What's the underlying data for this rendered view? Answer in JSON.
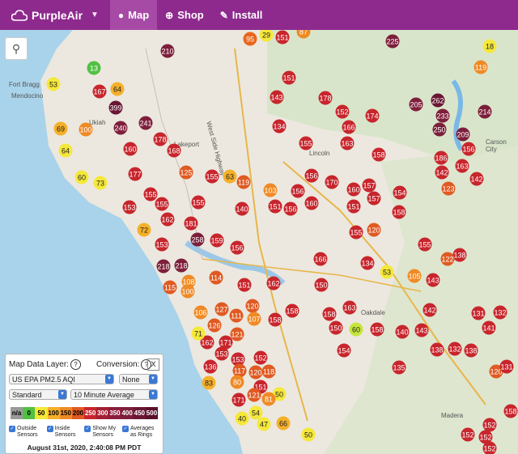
{
  "nav": {
    "brand": "PurpleAir",
    "items": [
      {
        "label": "Map",
        "icon": "globe-icon",
        "active": true
      },
      {
        "label": "Shop",
        "icon": "plus-circle-icon",
        "active": false
      },
      {
        "label": "Install",
        "icon": "wrench-icon",
        "active": false
      }
    ]
  },
  "map_labels": [
    "Fort Bragg",
    "Mendocino",
    "Ukiah",
    "Lakeport",
    "Lincoln",
    "Oakdale",
    "Madera",
    "Carson City",
    "West Side Highway"
  ],
  "sensors": [
    [
      207,
      63,
      210,
      "#7e1f3b"
    ],
    [
      309,
      48,
      95,
      "#e8661c"
    ],
    [
      329,
      43,
      29,
      "#f5e83a"
    ],
    [
      349,
      46,
      151,
      "#c8252c"
    ],
    [
      375,
      39,
      87,
      "#f08a25"
    ],
    [
      485,
      51,
      225,
      "#7b1f3a"
    ],
    [
      605,
      57,
      18,
      "#f5e83a"
    ],
    [
      594,
      83,
      119,
      "#f08a25"
    ],
    [
      116,
      84,
      13,
      "#52c043"
    ],
    [
      66,
      104,
      53,
      "#f5e83a"
    ],
    [
      123,
      113,
      167,
      "#c8252c"
    ],
    [
      145,
      110,
      64,
      "#f5b02a"
    ],
    [
      143,
      133,
      399,
      "#6a1634"
    ],
    [
      357,
      96,
      151,
      "#c8252c"
    ],
    [
      402,
      121,
      178,
      "#c8252c"
    ],
    [
      423,
      138,
      152,
      "#c8252c"
    ],
    [
      460,
      143,
      174,
      "#c8252c"
    ],
    [
      514,
      129,
      205,
      "#7e1f3b"
    ],
    [
      541,
      124,
      262,
      "#6a1634"
    ],
    [
      599,
      138,
      214,
      "#7b1f3a"
    ],
    [
      547,
      143,
      233,
      "#7e1f3b"
    ],
    [
      342,
      120,
      143,
      "#c8252c"
    ],
    [
      345,
      156,
      134,
      "#c8252c"
    ],
    [
      75,
      159,
      69,
      "#f5b02a"
    ],
    [
      106,
      160,
      100,
      "#f08a25"
    ],
    [
      149,
      158,
      240,
      "#7e1f3b"
    ],
    [
      180,
      152,
      241,
      "#7e1f3b"
    ],
    [
      431,
      157,
      166,
      "#c8252c"
    ],
    [
      543,
      160,
      250,
      "#7b1f3a"
    ],
    [
      572,
      166,
      209,
      "#7b1f3a"
    ],
    [
      81,
      186,
      64,
      "#f5e83a"
    ],
    [
      161,
      184,
      160,
      "#c8252c"
    ],
    [
      198,
      172,
      178,
      "#c8252c"
    ],
    [
      215,
      186,
      168,
      "#c8252c"
    ],
    [
      378,
      177,
      155,
      "#c8252c"
    ],
    [
      429,
      177,
      163,
      "#c8252c"
    ],
    [
      468,
      191,
      158,
      "#c8252c"
    ],
    [
      579,
      184,
      156,
      "#c8252c"
    ],
    [
      545,
      195,
      186,
      "#c8252c"
    ],
    [
      571,
      205,
      163,
      "#c8252c"
    ],
    [
      167,
      215,
      177,
      "#c8252c"
    ],
    [
      230,
      213,
      125,
      "#e05a22"
    ],
    [
      101,
      219,
      60,
      "#f5e83a"
    ],
    [
      124,
      226,
      73,
      "#f5e83a"
    ],
    [
      262,
      218,
      155,
      "#c8252c"
    ],
    [
      284,
      218,
      63,
      "#f5b02a"
    ],
    [
      301,
      225,
      119,
      "#e05a22"
    ],
    [
      385,
      217,
      156,
      "#c8252c"
    ],
    [
      410,
      225,
      170,
      "#c8252c"
    ],
    [
      437,
      234,
      160,
      "#c8252c"
    ],
    [
      456,
      229,
      157,
      "#c8252c"
    ],
    [
      494,
      238,
      154,
      "#c8252c"
    ],
    [
      554,
      233,
      123,
      "#e05a22"
    ],
    [
      589,
      221,
      142,
      "#c8252c"
    ],
    [
      546,
      213,
      142,
      "#c8252c"
    ],
    [
      186,
      240,
      155,
      "#c8252c"
    ],
    [
      334,
      235,
      103,
      "#f08a25"
    ],
    [
      368,
      236,
      156,
      "#c8252c"
    ],
    [
      160,
      256,
      153,
      "#c8252c"
    ],
    [
      200,
      252,
      155,
      "#c8252c"
    ],
    [
      245,
      250,
      155,
      "#c8252c"
    ],
    [
      299,
      258,
      140,
      "#c8252c"
    ],
    [
      340,
      255,
      151,
      "#c8252c"
    ],
    [
      359,
      258,
      156,
      "#c8252c"
    ],
    [
      385,
      251,
      160,
      "#c8252c"
    ],
    [
      437,
      255,
      151,
      "#c8252c"
    ],
    [
      462,
      245,
      157,
      "#c8252c"
    ],
    [
      493,
      262,
      158,
      "#c8252c"
    ],
    [
      207,
      271,
      162,
      "#c8252c"
    ],
    [
      236,
      276,
      181,
      "#c8252c"
    ],
    [
      178,
      284,
      72,
      "#f5b02a"
    ],
    [
      440,
      287,
      155,
      "#c8252c"
    ],
    [
      462,
      284,
      120,
      "#e05a22"
    ],
    [
      525,
      302,
      155,
      "#c8252c"
    ],
    [
      244,
      296,
      258,
      "#7b1f3a"
    ],
    [
      268,
      297,
      159,
      "#c8252c"
    ],
    [
      293,
      306,
      156,
      "#c8252c"
    ],
    [
      200,
      302,
      153,
      "#c8252c"
    ],
    [
      396,
      320,
      166,
      "#c8252c"
    ],
    [
      454,
      325,
      134,
      "#c8252c"
    ],
    [
      478,
      336,
      53,
      "#f5e83a"
    ],
    [
      568,
      315,
      138,
      "#c8252c"
    ],
    [
      553,
      320,
      122,
      "#e05a22"
    ],
    [
      202,
      329,
      218,
      "#7e1f3b"
    ],
    [
      224,
      328,
      218,
      "#7e1f3b"
    ],
    [
      233,
      348,
      108,
      "#f08a25"
    ],
    [
      267,
      343,
      114,
      "#e05a22"
    ],
    [
      302,
      352,
      151,
      "#c8252c"
    ],
    [
      338,
      350,
      162,
      "#c8252c"
    ],
    [
      397,
      352,
      150,
      "#c8252c"
    ],
    [
      512,
      341,
      105,
      "#f08a25"
    ],
    [
      535,
      346,
      143,
      "#c8252c"
    ],
    [
      232,
      360,
      100,
      "#f08a25"
    ],
    [
      210,
      355,
      115,
      "#e05a22"
    ],
    [
      274,
      382,
      127,
      "#e05a22"
    ],
    [
      312,
      378,
      120,
      "#e05a22"
    ],
    [
      361,
      384,
      158,
      "#c8252c"
    ],
    [
      407,
      388,
      158,
      "#c8252c"
    ],
    [
      432,
      380,
      163,
      "#c8252c"
    ],
    [
      531,
      383,
      142,
      "#c8252c"
    ],
    [
      591,
      387,
      131,
      "#c8252c"
    ],
    [
      618,
      386,
      132,
      "#c8252c"
    ],
    [
      248,
      386,
      106,
      "#f08a25"
    ],
    [
      292,
      390,
      111,
      "#e05a22"
    ],
    [
      314,
      394,
      107,
      "#f08a25"
    ],
    [
      265,
      402,
      126,
      "#e05a22"
    ],
    [
      293,
      413,
      121,
      "#e05a22"
    ],
    [
      256,
      423,
      162,
      "#c8252c"
    ],
    [
      279,
      423,
      171,
      "#c8252c"
    ],
    [
      245,
      412,
      71,
      "#f5e83a"
    ],
    [
      340,
      395,
      158,
      "#c8252c"
    ],
    [
      415,
      405,
      150,
      "#c8252c"
    ],
    [
      440,
      407,
      60,
      "#c5e63a"
    ],
    [
      466,
      407,
      158,
      "#c8252c"
    ],
    [
      497,
      410,
      140,
      "#c8252c"
    ],
    [
      521,
      408,
      143,
      "#c8252c"
    ],
    [
      604,
      405,
      141,
      "#c8252c"
    ],
    [
      274,
      437,
      153,
      "#c8252c"
    ],
    [
      294,
      444,
      153,
      "#c8252c"
    ],
    [
      322,
      442,
      152,
      "#c8252c"
    ],
    [
      425,
      433,
      154,
      "#c8252c"
    ],
    [
      562,
      431,
      132,
      "#c8252c"
    ],
    [
      582,
      433,
      138,
      "#c8252c"
    ],
    [
      540,
      432,
      138,
      "#c8252c"
    ],
    [
      260,
      453,
      136,
      "#c8252c"
    ],
    [
      296,
      458,
      117,
      "#e05a22"
    ],
    [
      316,
      460,
      120,
      "#e05a22"
    ],
    [
      332,
      459,
      118,
      "#e05a22"
    ],
    [
      493,
      454,
      135,
      "#c8252c"
    ],
    [
      613,
      459,
      120,
      "#e05a22"
    ],
    [
      626,
      453,
      131,
      "#c8252c"
    ],
    [
      293,
      472,
      80,
      "#f08a25"
    ],
    [
      322,
      478,
      151,
      "#c8252c"
    ],
    [
      258,
      473,
      83,
      "#f5b02a"
    ],
    [
      345,
      487,
      50,
      "#f5e83a"
    ],
    [
      295,
      494,
      171,
      "#c8252c"
    ],
    [
      314,
      488,
      121,
      "#e05a22"
    ],
    [
      332,
      493,
      81,
      "#f08a25"
    ],
    [
      299,
      517,
      40,
      "#f5e83a"
    ],
    [
      316,
      510,
      54,
      "#f5e83a"
    ],
    [
      326,
      524,
      47,
      "#f5e83a"
    ],
    [
      350,
      523,
      66,
      "#f5b02a"
    ],
    [
      381,
      537,
      50,
      "#f5e83a"
    ],
    [
      578,
      537,
      152,
      "#c8252c"
    ],
    [
      600,
      540,
      152,
      "#c8252c"
    ],
    [
      605,
      525,
      152,
      "#c8252c"
    ],
    [
      631,
      508,
      158,
      "#c8252c"
    ],
    [
      605,
      554,
      152,
      "#c8252c"
    ]
  ],
  "panel": {
    "title": "Map Data Layer:",
    "conversion_label": "Conversion:",
    "close_label": "X",
    "layer_select": "US EPA PM2.5 AQI",
    "conversion_select": "None",
    "mode_select": "Standard",
    "average_select": "10 Minute Average",
    "scale_labels": [
      "n/a",
      "0",
      "50",
      "100",
      "150",
      "200",
      "250",
      "300",
      "350",
      "400",
      "450",
      "500"
    ],
    "scale_colors": [
      "#9a9a9a",
      "#52c043",
      "#f5e83a",
      "#f5b02a",
      "#f08a25",
      "#e05a22",
      "#c8252c",
      "#a31f33",
      "#8a1d3c",
      "#7b1f3a",
      "#6a1634",
      "#5a0f2a"
    ],
    "options": [
      "Outside Sensors",
      "Inside Sensors",
      "Show My Sensors",
      "Averages as Rings"
    ],
    "timestamp": "August 31st, 2020, 2:40:08 PM PDT"
  }
}
